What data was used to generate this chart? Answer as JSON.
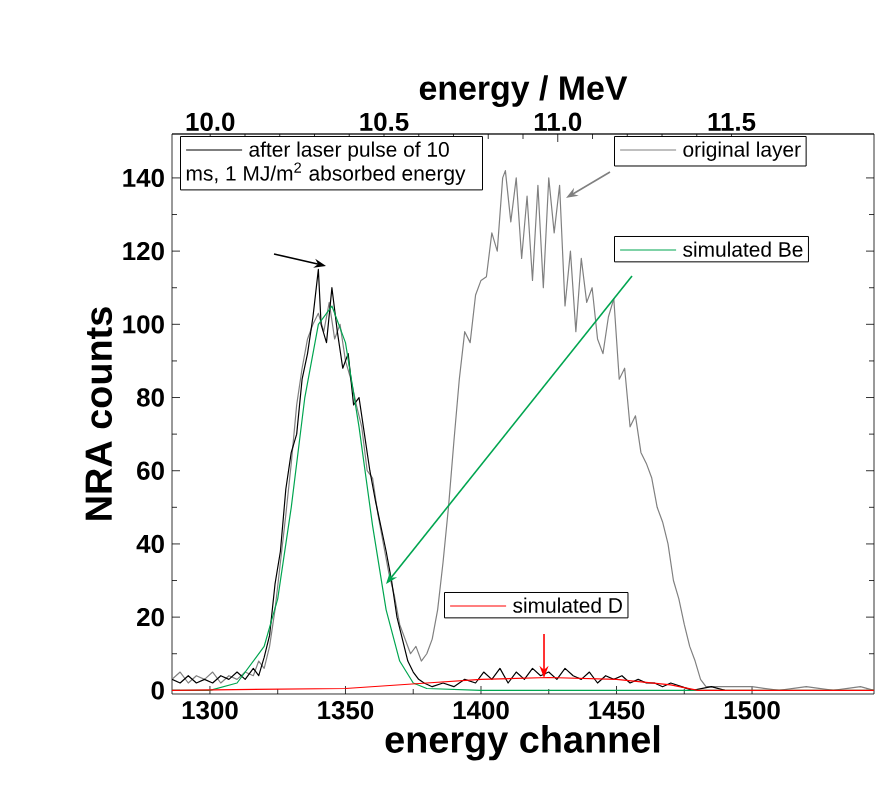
{
  "chart_data": {
    "type": "line",
    "xlabel": "energy channel",
    "ylabel": "NRA counts",
    "x2label": "energy / MeV",
    "xlim": [
      1286,
      1545
    ],
    "xticks": [
      1300,
      1350,
      1400,
      1450,
      1500
    ],
    "x2lim": [
      9.89,
      11.91
    ],
    "x2ticks": [
      {
        "value": 10.0,
        "label": "10.0"
      },
      {
        "value": 10.5,
        "label": "10.5"
      },
      {
        "value": 11.0,
        "label": "11.0"
      },
      {
        "value": 11.5,
        "label": "11.5"
      }
    ],
    "ylim": [
      -1,
      152
    ],
    "yticks": [
      0,
      20,
      40,
      60,
      80,
      100,
      120,
      140
    ],
    "legend": "top right",
    "series": [
      {
        "name": "original layer",
        "color": "#808080",
        "x": [
          1286,
          1289,
          1292,
          1295,
          1298,
          1301,
          1304,
          1307,
          1310,
          1313,
          1316,
          1318,
          1320,
          1322,
          1324,
          1326,
          1328,
          1330,
          1332,
          1334,
          1336,
          1338,
          1340,
          1342,
          1344,
          1346,
          1348,
          1350,
          1352,
          1354,
          1356,
          1358,
          1360,
          1362,
          1364,
          1366,
          1368,
          1370,
          1372,
          1374,
          1376,
          1378,
          1380,
          1382,
          1384,
          1386,
          1388,
          1390,
          1392,
          1394,
          1396,
          1398,
          1400,
          1402,
          1404,
          1406,
          1408,
          1409,
          1411,
          1413,
          1415,
          1417,
          1419,
          1421,
          1423,
          1425,
          1427,
          1429,
          1431,
          1433,
          1435,
          1437,
          1439,
          1441,
          1443,
          1445,
          1447,
          1449,
          1451,
          1453,
          1455,
          1457,
          1459,
          1461,
          1463,
          1465,
          1467,
          1469,
          1471,
          1473,
          1475,
          1477,
          1479,
          1481,
          1483,
          1490,
          1500,
          1510,
          1520,
          1530,
          1540,
          1545
        ],
        "values": [
          3,
          5,
          2,
          4,
          3,
          5,
          2,
          4,
          3,
          5,
          4,
          8,
          6,
          12,
          22,
          35,
          48,
          62,
          78,
          88,
          96,
          100,
          103,
          98,
          106,
          96,
          100,
          90,
          85,
          78,
          72,
          60,
          58,
          48,
          40,
          32,
          26,
          18,
          14,
          10,
          12,
          8,
          10,
          14,
          22,
          35,
          50,
          68,
          85,
          98,
          95,
          108,
          112,
          113,
          125,
          120,
          140,
          142,
          128,
          140,
          118,
          135,
          112,
          138,
          110,
          140,
          125,
          138,
          105,
          120,
          98,
          118,
          106,
          110,
          96,
          92,
          102,
          107,
          85,
          88,
          72,
          75,
          65,
          62,
          58,
          50,
          46,
          40,
          30,
          25,
          18,
          12,
          8,
          3,
          1,
          1,
          1,
          0,
          1,
          0,
          1,
          0
        ]
      },
      {
        "name": "after laser pulse of 10 ms, 1 MJ/m$^{2}$ absorbed energy",
        "color": "#000000",
        "x": [
          1286,
          1289,
          1292,
          1295,
          1298,
          1301,
          1304,
          1307,
          1310,
          1313,
          1316,
          1318,
          1320,
          1322,
          1324,
          1326,
          1328,
          1330,
          1332,
          1334,
          1336,
          1338,
          1340,
          1341,
          1343,
          1345,
          1347,
          1349,
          1351,
          1353,
          1355,
          1357,
          1359,
          1361,
          1363,
          1365,
          1367,
          1369,
          1371,
          1373,
          1375,
          1377,
          1379,
          1382,
          1386,
          1390,
          1394,
          1398,
          1401,
          1404,
          1407,
          1410,
          1413,
          1416,
          1419,
          1422,
          1425,
          1428,
          1431,
          1434,
          1437,
          1440,
          1443,
          1446,
          1449,
          1452,
          1455,
          1458,
          1461,
          1464,
          1467,
          1470,
          1474,
          1478,
          1485,
          1490
        ],
        "values": [
          3,
          2,
          4,
          2,
          3,
          2,
          4,
          3,
          5,
          3,
          6,
          4,
          9,
          15,
          29,
          38,
          55,
          65,
          70,
          85,
          92,
          102,
          115,
          100,
          95,
          110,
          98,
          88,
          92,
          78,
          80,
          70,
          60,
          52,
          45,
          38,
          30,
          20,
          14,
          8,
          5,
          3,
          2,
          1,
          2,
          1,
          3,
          2,
          5,
          3,
          6,
          2,
          5,
          3,
          6,
          4,
          5,
          3,
          6,
          4,
          3,
          5,
          2,
          4,
          3,
          4,
          2,
          3,
          2,
          2,
          1,
          2,
          1,
          0,
          1,
          0
        ]
      },
      {
        "name": "simulated Be",
        "color": "#00a550",
        "x": [
          1286,
          1300,
          1310,
          1320,
          1325,
          1330,
          1335,
          1340,
          1345,
          1350,
          1355,
          1360,
          1365,
          1370,
          1375,
          1380,
          1400,
          1545
        ],
        "values": [
          0,
          0,
          2,
          12,
          25,
          50,
          80,
          100,
          105,
          95,
          72,
          45,
          22,
          8,
          2,
          0.5,
          0,
          0
        ]
      },
      {
        "name": "simulated D",
        "color": "#ff0000",
        "x": [
          1286,
          1350,
          1380,
          1400,
          1425,
          1450,
          1470,
          1480,
          1545
        ],
        "values": [
          0,
          0.5,
          2,
          3,
          3.5,
          3,
          1.5,
          0,
          0
        ]
      }
    ]
  }
}
